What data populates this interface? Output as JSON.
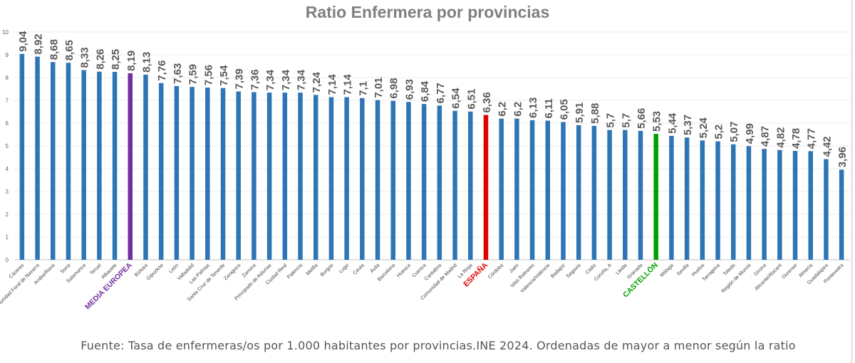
{
  "chart_data": {
    "type": "bar",
    "title": "Ratio Enfermera por provincias",
    "xlabel": "",
    "ylabel": "",
    "ylim": [
      0,
      10
    ],
    "yticks": [
      "0",
      "1",
      "2",
      "3",
      "4",
      "5",
      "6",
      "7",
      "8",
      "9",
      "10"
    ],
    "categories": [
      "Cáceres",
      "Comunidad Foral de Navarra",
      "Araba/Álava",
      "Soria",
      "Salamanca",
      "Teruel",
      "Albacete",
      "MEDIA EUROPEA",
      "Bizkaia",
      "Gipuzkoa",
      "León",
      "Valladolid",
      "Las Palmas",
      "Santa Cruz de Tenerife",
      "Zaragoza",
      "Zamora",
      "Principado de Asturias",
      "Ciudad Real",
      "Palencia",
      "Melilla",
      "Burgos",
      "Lugo",
      "Ceuta",
      "Ávila",
      "Barcelona",
      "Huesca",
      "Cuenca",
      "Cantabria",
      "Comunidad de Madrid",
      "La Rioja",
      "ESPAÑA",
      "Córdoba",
      "Jaén",
      "Islas Baleares",
      "Valencia/València",
      "Badajoz",
      "Segovia",
      "Cádiz",
      "Coruña, A",
      "Lleida",
      "Granada",
      "CASTELLÓN",
      "Málaga",
      "Sevilla",
      "Huelva",
      "Tarragona",
      "Toledo",
      "Región de Murcia",
      "Girona",
      "Alicante/Alacant",
      "Ourense",
      "Almería",
      "Guadalajara",
      "Pontevedra"
    ],
    "values": [
      9.04,
      8.92,
      8.68,
      8.65,
      8.33,
      8.26,
      8.25,
      8.19,
      8.13,
      7.76,
      7.63,
      7.59,
      7.56,
      7.54,
      7.39,
      7.36,
      7.34,
      7.34,
      7.34,
      7.24,
      7.14,
      7.14,
      7.1,
      7.01,
      6.98,
      6.93,
      6.84,
      6.77,
      6.54,
      6.51,
      6.36,
      6.2,
      6.2,
      6.13,
      6.11,
      6.05,
      5.91,
      5.88,
      5.7,
      5.7,
      5.66,
      5.53,
      5.44,
      5.37,
      5.24,
      5.2,
      5.07,
      4.99,
      4.87,
      4.82,
      4.78,
      4.77,
      4.42,
      3.96
    ],
    "value_labels": [
      "9,04",
      "8,92",
      "8,68",
      "8,65",
      "8,33",
      "8,26",
      "8,25",
      "8,19",
      "8,13",
      "7,76",
      "7,63",
      "7,59",
      "7,56",
      "7,54",
      "7,39",
      "7,36",
      "7,34",
      "7,34",
      "7,34",
      "7,24",
      "7,14",
      "7,14",
      "7,1",
      "7,01",
      "6,98",
      "6,93",
      "6,84",
      "6,77",
      "6,54",
      "6,51",
      "6,36",
      "6,2",
      "6,2",
      "6,13",
      "6,11",
      "6,05",
      "5,91",
      "5,88",
      "5,7",
      "5,7",
      "5,66",
      "5,53",
      "5,44",
      "5,37",
      "5,24",
      "5,2",
      "5,07",
      "4,99",
      "4,87",
      "4,82",
      "4,78",
      "4,77",
      "4,42",
      "3,96"
    ],
    "highlights": {
      "MEDIA EUROPEA": "#7030a0",
      "ESPAÑA": "#e00000",
      "CASTELLÓN": "#00a000"
    },
    "bar_color": "#2e75b6",
    "grid": true
  },
  "footer": {
    "source": "Fuente: Tasa de enfermeras/os por 1.000 habitantes por provincias.INE 2024. Ordenadas de mayor a menor según la ratio"
  }
}
